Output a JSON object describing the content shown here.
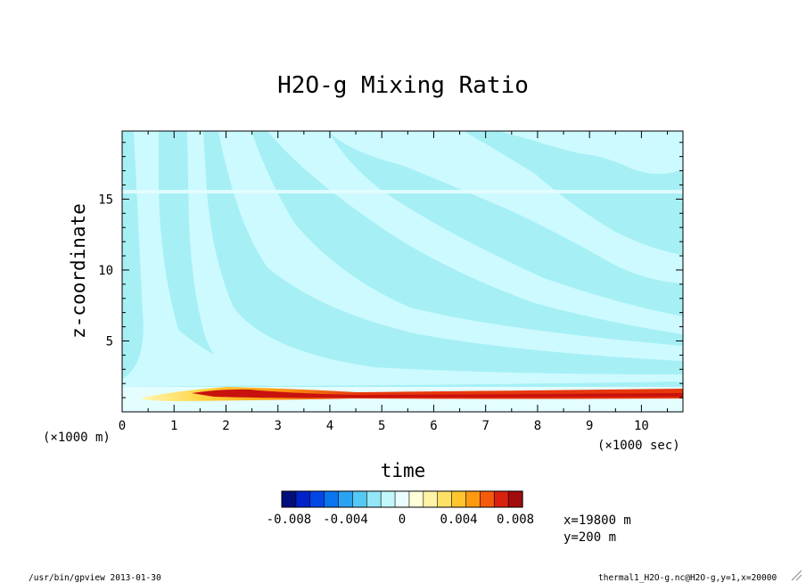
{
  "chart_data": {
    "type": "heatmap",
    "title": "H2O-g Mixing Ratio",
    "xlabel": "time",
    "ylabel": "z-coordinate",
    "x_unit_label": "(×1000 sec)",
    "y_unit_label": "(×1000 m)",
    "xlim": [
      0,
      10.8
    ],
    "ylim": [
      0,
      19.8
    ],
    "x_ticks": [
      "0",
      "1",
      "2",
      "3",
      "4",
      "5",
      "6",
      "7",
      "8",
      "9",
      "10"
    ],
    "y_ticks": [
      "5",
      "10",
      "15"
    ],
    "colorbar": {
      "levels": [
        -0.008,
        -0.007,
        -0.006,
        -0.005,
        -0.004,
        -0.003,
        -0.002,
        -0.001,
        0,
        0.001,
        0.002,
        0.003,
        0.004,
        0.005,
        0.006,
        0.007,
        0.008
      ],
      "colors": [
        "#000f7a",
        "#0022c8",
        "#0047e6",
        "#0b74ef",
        "#2aa2f2",
        "#55c8f4",
        "#92e6f6",
        "#c2f7fb",
        "#e8fdff",
        "#ffffd8",
        "#fff3a8",
        "#ffe066",
        "#ffc52e",
        "#ff9a10",
        "#f65a0c",
        "#d8220e",
        "#a30c0c"
      ],
      "tick_labels": [
        "-0.008",
        "-0.004",
        "0",
        "0.004",
        "0.008"
      ]
    },
    "field_colors": {
      "band_a": "#cdfaff",
      "band_b": "#a6f0f5",
      "near_zero": "#e4fdff"
    },
    "note_x": "x=19800 m",
    "note_y": "y=200 m"
  },
  "footer": {
    "left": "/usr/bin/gpview  2013-01-30",
    "right": "thermal1_H2O-g.nc@H2O-g,y=1,x=20000"
  }
}
